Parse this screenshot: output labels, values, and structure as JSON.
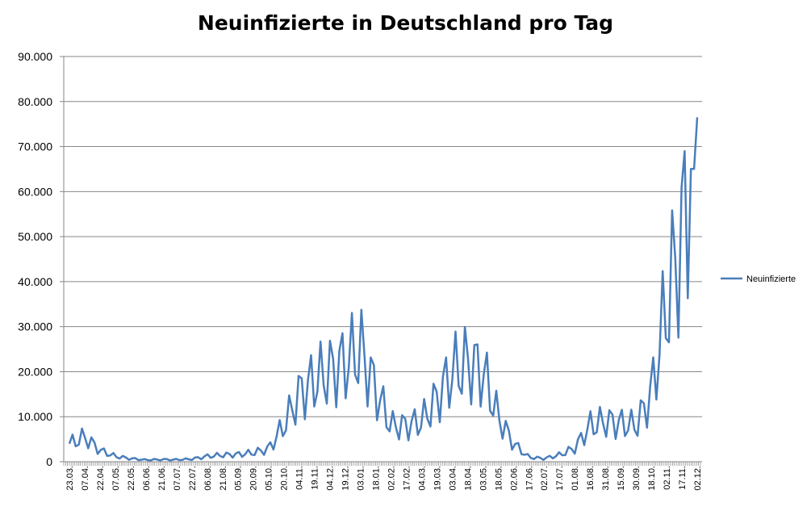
{
  "chart_data": {
    "type": "line",
    "title": "Neuinfizierte in Deutschland pro Tag",
    "xlabel": "",
    "ylabel": "",
    "ylim": [
      0,
      90000
    ],
    "y_ticks": [
      0,
      10000,
      20000,
      30000,
      40000,
      50000,
      60000,
      70000,
      80000,
      90000
    ],
    "y_tick_labels": [
      "0",
      "10.000",
      "20.000",
      "30.000",
      "40.000",
      "50.000",
      "60.000",
      "70.000",
      "80.000",
      "90.000"
    ],
    "x_tick_labels": [
      "23.03.",
      "07.04.",
      "22.04.",
      "07.05.",
      "22.05.",
      "06.06.",
      "21.06.",
      "07.07.",
      "22.07.",
      "06.08.",
      "21.08.",
      "05.09.",
      "20.09.",
      "05.10.",
      "20.10.",
      "04.11.",
      "19.11.",
      "04.12.",
      "19.12.",
      "03.01.",
      "18.01.",
      "02.02.",
      "17.02.",
      "04.03.",
      "19.03.",
      "03.04.",
      "18.04.",
      "03.05.",
      "18.05.",
      "02.06.",
      "17.06.",
      "02.07.",
      "17.07.",
      "01.08.",
      "16.08.",
      "31.08.",
      "15.09.",
      "30.09.",
      "18.10.",
      "02.11.",
      "17.11.",
      "02.12."
    ],
    "grid": true,
    "legend_position": "right",
    "series": [
      {
        "name": "Neuinfizierte",
        "color": "#4a7ebb",
        "note": "values sampled at each x tick label",
        "values": [
          4000,
          5500,
          2500,
          1200,
          700,
          400,
          500,
          450,
          600,
          1200,
          1500,
          1600,
          2000,
          2800,
          8000,
          15000,
          18000,
          20000,
          22000,
          25000,
          16000,
          8000,
          8000,
          9000,
          14000,
          20000,
          22000,
          20000,
          10000,
          4000,
          1000,
          700,
          1500,
          3000,
          8000,
          9000,
          8500,
          8000,
          15000,
          35000,
          50000,
          76500
        ]
      }
    ]
  }
}
